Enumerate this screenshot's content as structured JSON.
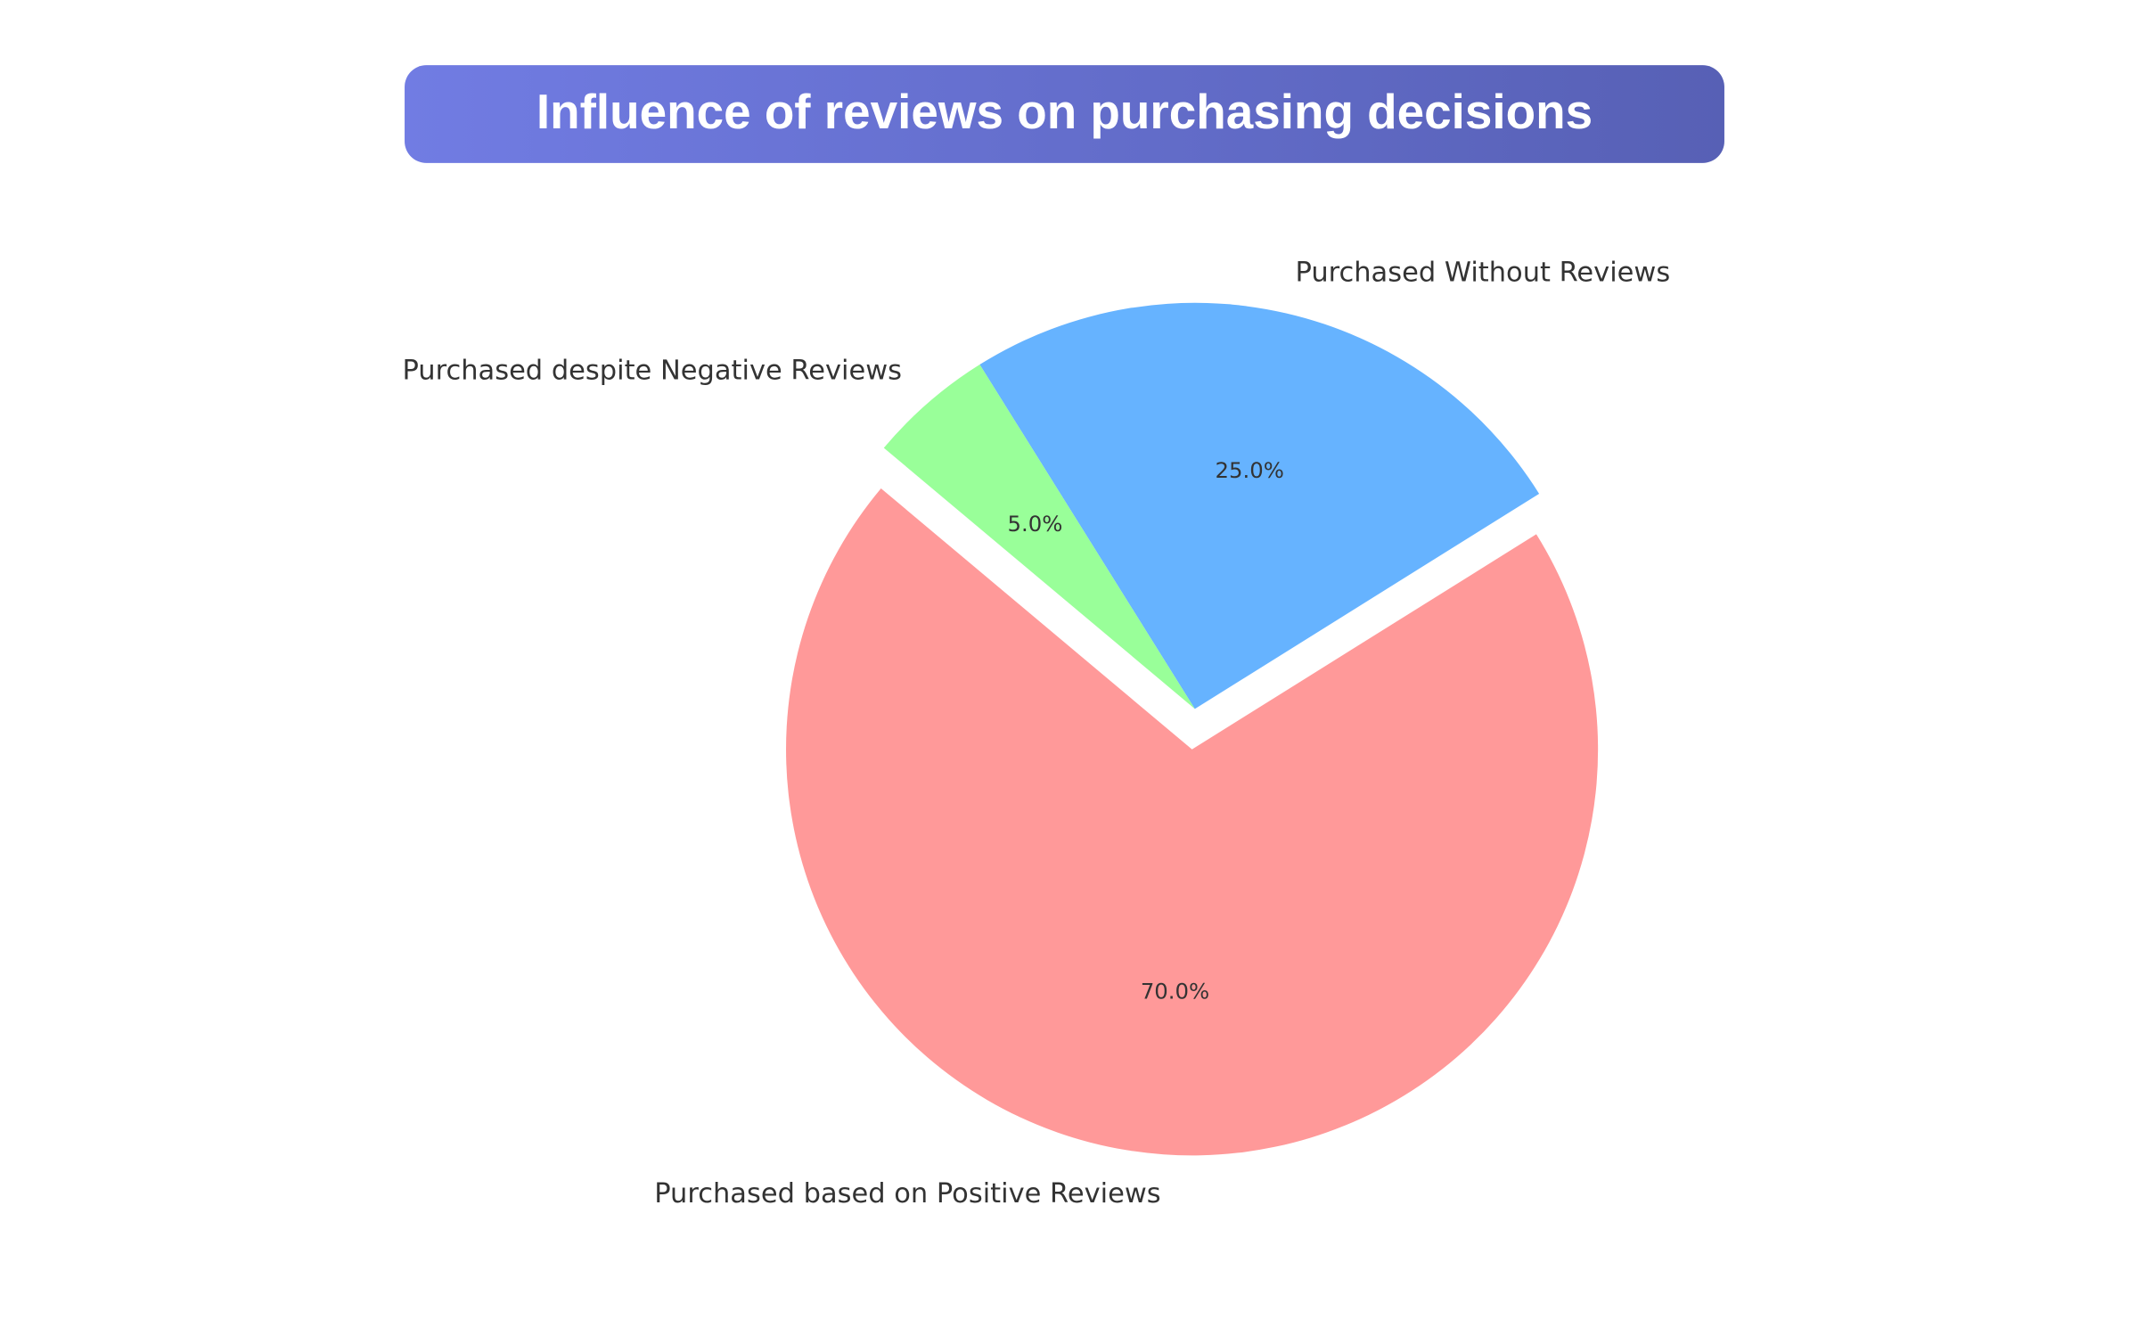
{
  "chart_data": {
    "type": "pie",
    "title": "Influence of reviews on purchasing decisions",
    "categories": [
      "Purchased based on Positive Reviews",
      "Purchased Without Reviews",
      "Purchased despite Negative Reviews"
    ],
    "values": [
      70,
      25,
      5
    ],
    "value_labels": [
      "70.0%",
      "25.0%",
      "5.0%"
    ],
    "colors": [
      "#ff9999",
      "#66b3ff",
      "#99ff99"
    ]
  }
}
